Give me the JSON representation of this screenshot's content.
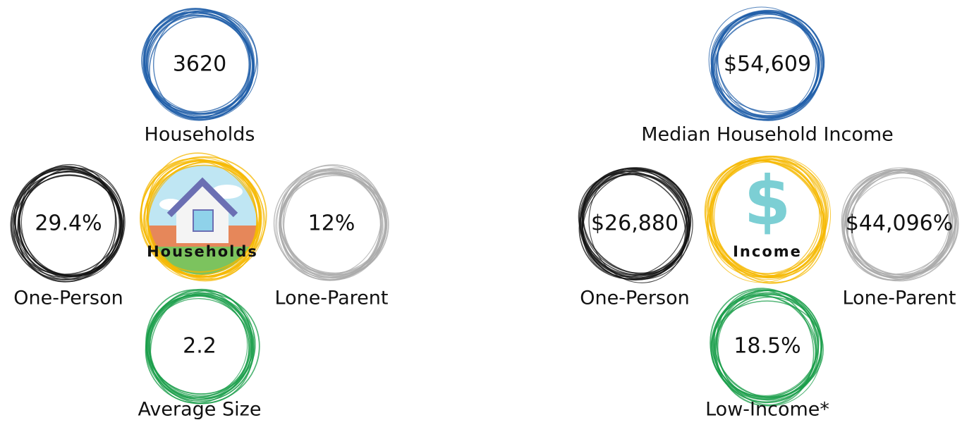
{
  "panels": [
    {
      "center_label": "Households",
      "stats": [
        {
          "value": "3620",
          "label": "Households"
        },
        {
          "value": "29.4%",
          "label": "One-Person"
        },
        {
          "value": "12%",
          "label": "Lone-Parent"
        },
        {
          "value": "2.2",
          "label": "Average Size"
        }
      ]
    },
    {
      "center_label": "Income",
      "icon": "$",
      "stats": [
        {
          "value": "$54,609",
          "label": "Median Household Income"
        },
        {
          "value": "$26,880",
          "label": "One-Person"
        },
        {
          "value": "$44,096%",
          "label": "Lone-Parent"
        },
        {
          "value": "18.5%",
          "label": "Low-Income*"
        }
      ]
    }
  ]
}
